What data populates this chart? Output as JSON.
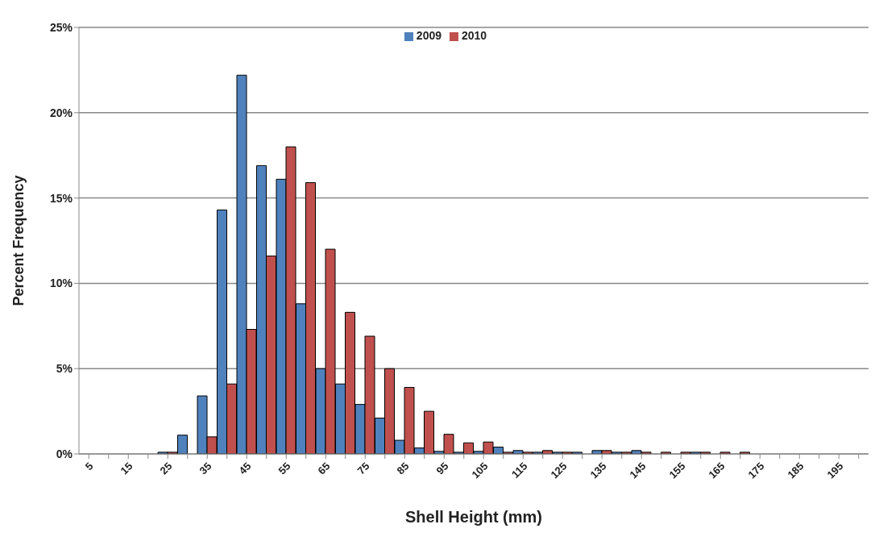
{
  "chart_data": {
    "type": "bar",
    "xlabel": "Shell Height (mm)",
    "ylabel": "Percent Frequency",
    "categories": [
      "5",
      null,
      "15",
      null,
      "25",
      null,
      "35",
      null,
      "45",
      null,
      "55",
      null,
      "65",
      null,
      "75",
      null,
      "85",
      null,
      "95",
      null,
      "105",
      null,
      "115",
      null,
      "125",
      null,
      "135",
      null,
      "145",
      null,
      "155",
      null,
      "165",
      null,
      "175",
      null,
      "185",
      null,
      "195",
      null
    ],
    "series": [
      {
        "name": "2009",
        "color": "#4f81bd",
        "values": [
          0,
          0,
          0,
          0,
          0.1,
          1.1,
          3.4,
          14.3,
          22.2,
          16.9,
          16.1,
          8.8,
          5.0,
          4.1,
          2.9,
          2.1,
          0.8,
          0.35,
          0.15,
          0.1,
          0.15,
          0.4,
          0.2,
          0.1,
          0.1,
          0.1,
          0.2,
          0.1,
          0.2,
          0,
          0,
          0.1,
          0,
          0,
          0,
          0,
          0,
          0,
          0,
          0
        ]
      },
      {
        "name": "2010",
        "color": "#c0504d",
        "values": [
          0,
          0,
          0,
          0,
          0.1,
          0,
          1.0,
          4.1,
          7.3,
          11.6,
          18.0,
          15.9,
          12.0,
          8.3,
          6.9,
          5.0,
          3.9,
          2.5,
          1.15,
          0.65,
          0.7,
          0.1,
          0.1,
          0.2,
          0.1,
          0,
          0.2,
          0.1,
          0.1,
          0.1,
          0.1,
          0.1,
          0.1,
          0.1,
          0,
          0,
          0,
          0,
          0,
          0
        ]
      }
    ],
    "ylim": [
      0,
      25
    ],
    "yticks": [
      {
        "value": 0,
        "label": "0%"
      },
      {
        "value": 5,
        "label": "5%"
      },
      {
        "value": 10,
        "label": "10%"
      },
      {
        "value": 15,
        "label": "15%"
      },
      {
        "value": 20,
        "label": "20%"
      },
      {
        "value": 25,
        "label": "25%"
      }
    ],
    "grid": "y",
    "legend": "top"
  }
}
